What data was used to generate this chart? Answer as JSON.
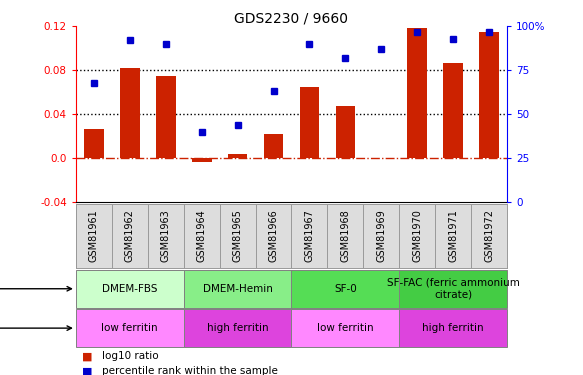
{
  "title": "GDS2230 / 9660",
  "samples": [
    "GSM81961",
    "GSM81962",
    "GSM81963",
    "GSM81964",
    "GSM81965",
    "GSM81966",
    "GSM81967",
    "GSM81968",
    "GSM81969",
    "GSM81970",
    "GSM81971",
    "GSM81972"
  ],
  "log10_ratio": [
    0.027,
    0.082,
    0.075,
    -0.003,
    0.004,
    0.022,
    0.065,
    0.048,
    0.0,
    0.118,
    0.087,
    0.115
  ],
  "percentile_rank": [
    68,
    92,
    90,
    40,
    44,
    63,
    90,
    82,
    87,
    97,
    93,
    97
  ],
  "bar_color": "#cc2200",
  "dot_color": "#0000cc",
  "ylim_left": [
    -0.04,
    0.12
  ],
  "ylim_right": [
    0,
    100
  ],
  "yticks_left": [
    -0.04,
    0.0,
    0.04,
    0.08,
    0.12
  ],
  "yticks_right": [
    0,
    25,
    50,
    75,
    100
  ],
  "hline_y": [
    0.04,
    0.08
  ],
  "hline_color": "black",
  "zero_line_color": "#cc2200",
  "agent_groups": [
    {
      "label": "DMEM-FBS",
      "start": 0,
      "end": 3,
      "color": "#ccffcc"
    },
    {
      "label": "DMEM-Hemin",
      "start": 3,
      "end": 6,
      "color": "#88ee88"
    },
    {
      "label": "SF-0",
      "start": 6,
      "end": 9,
      "color": "#55dd55"
    },
    {
      "label": "SF-FAC (ferric ammonium\ncitrate)",
      "start": 9,
      "end": 12,
      "color": "#44cc44"
    }
  ],
  "growth_groups": [
    {
      "label": "low ferritin",
      "start": 0,
      "end": 3,
      "color": "#ff88ff"
    },
    {
      "label": "high ferritin",
      "start": 3,
      "end": 6,
      "color": "#dd44dd"
    },
    {
      "label": "low ferritin",
      "start": 6,
      "end": 9,
      "color": "#ff88ff"
    },
    {
      "label": "high ferritin",
      "start": 9,
      "end": 12,
      "color": "#dd44dd"
    }
  ],
  "legend_items": [
    {
      "label": "log10 ratio",
      "color": "#cc2200"
    },
    {
      "label": "percentile rank within the sample",
      "color": "#0000cc"
    }
  ],
  "xlabels_bg": "#dddddd",
  "xlabels_border": "#999999"
}
